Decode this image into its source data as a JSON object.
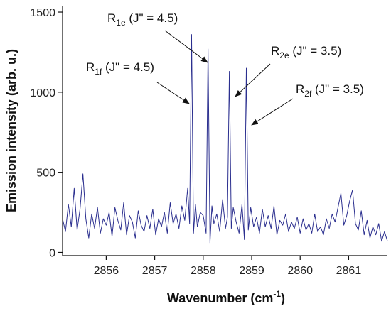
{
  "chart_data": {
    "type": "line",
    "xlabel": "Wavenumber (cm",
    "xlabel_sup": "-1",
    "xlabel_suffix": ")",
    "ylabel": "Emission intensity (arb. u.)",
    "xlim": [
      2855.1,
      2861.8
    ],
    "ylim": [
      -20,
      1540
    ],
    "xticks": [
      2856,
      2857,
      2858,
      2859,
      2860,
      2861
    ],
    "yticks": [
      0,
      500,
      1000,
      1500
    ],
    "grid": false,
    "line_color": "#2b2f8f",
    "series": [
      {
        "x": [
          2855.1,
          2855.16,
          2855.22,
          2855.28,
          2855.34,
          2855.4,
          2855.46,
          2855.52,
          2855.58,
          2855.64,
          2855.7,
          2855.76,
          2855.82,
          2855.88,
          2855.94,
          2856.0,
          2856.06,
          2856.12,
          2856.18,
          2856.24,
          2856.3,
          2856.36,
          2856.42,
          2856.48,
          2856.54,
          2856.6,
          2856.66,
          2856.72,
          2856.78,
          2856.84,
          2856.9,
          2856.96,
          2857.02,
          2857.08,
          2857.14,
          2857.2,
          2857.26,
          2857.32,
          2857.38,
          2857.44,
          2857.5,
          2857.56,
          2857.62,
          2857.68,
          2857.72,
          2857.76,
          2857.8,
          2857.84,
          2857.88,
          2857.94,
          2858.0,
          2858.06,
          2858.1,
          2858.14,
          2858.18,
          2858.22,
          2858.28,
          2858.34,
          2858.4,
          2858.46,
          2858.5,
          2858.54,
          2858.58,
          2858.62,
          2858.68,
          2858.74,
          2858.8,
          2858.85,
          2858.89,
          2858.93,
          2858.98,
          2859.04,
          2859.1,
          2859.16,
          2859.22,
          2859.28,
          2859.34,
          2859.4,
          2859.46,
          2859.52,
          2859.58,
          2859.64,
          2859.7,
          2859.76,
          2859.82,
          2859.88,
          2859.94,
          2860.0,
          2860.06,
          2860.12,
          2860.18,
          2860.24,
          2860.3,
          2860.36,
          2860.42,
          2860.48,
          2860.54,
          2860.6,
          2860.66,
          2860.72,
          2860.78,
          2860.84,
          2860.9,
          2860.96,
          2861.02,
          2861.08,
          2861.14,
          2861.2,
          2861.26,
          2861.32,
          2861.38,
          2861.44,
          2861.5,
          2861.56,
          2861.62,
          2861.68,
          2861.74,
          2861.8
        ],
        "y": [
          210,
          130,
          300,
          160,
          400,
          140,
          270,
          490,
          210,
          90,
          240,
          150,
          280,
          120,
          210,
          170,
          250,
          100,
          280,
          200,
          140,
          310,
          110,
          230,
          190,
          90,
          260,
          170,
          130,
          230,
          150,
          270,
          110,
          210,
          160,
          250,
          120,
          310,
          180,
          240,
          150,
          290,
          200,
          400,
          180,
          1360,
          120,
          300,
          160,
          250,
          230,
          120,
          1270,
          60,
          290,
          180,
          240,
          130,
          330,
          150,
          220,
          1130,
          150,
          280,
          190,
          120,
          300,
          80,
          1150,
          140,
          280,
          160,
          220,
          120,
          270,
          160,
          230,
          150,
          290,
          110,
          200,
          170,
          240,
          130,
          190,
          150,
          220,
          120,
          210,
          140,
          180,
          120,
          240,
          130,
          160,
          110,
          210,
          150,
          240,
          190,
          280,
          370,
          170,
          230,
          320,
          390,
          180,
          140,
          260,
          110,
          200,
          90,
          160,
          110,
          180,
          70,
          130,
          70
        ]
      }
    ],
    "annotations": [
      {
        "label": "R",
        "sub": "1e",
        "rest": " (J\" = 4.5)"
      },
      {
        "label": "R",
        "sub": "1f",
        "rest": " (J\" = 4.5)"
      },
      {
        "label": "R",
        "sub": "2e",
        "rest": " (J\" = 3.5)"
      },
      {
        "label": "R",
        "sub": "2f",
        "rest": " (J\" = 3.5)"
      }
    ]
  }
}
